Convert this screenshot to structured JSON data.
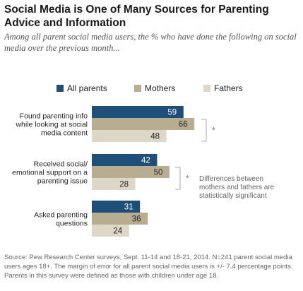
{
  "header": {
    "title": "Social Media is One of Many Sources for Parenting Advice and Information",
    "subtitle": "Among all parent social media users, the % who have done the following on social media over the previous month..."
  },
  "chart_data": {
    "type": "bar",
    "orientation": "horizontal",
    "categories": [
      [
        "Found parenting info",
        "while looking at social",
        "media content"
      ],
      [
        "Received social/",
        "emotional support on a",
        "parenting issue"
      ],
      [
        "Asked parenting",
        "questions"
      ]
    ],
    "series": [
      {
        "name": "All parents",
        "color": "#1f4e79",
        "values": [
          59,
          42,
          31
        ]
      },
      {
        "name": "Mothers",
        "color": "#b8ad91",
        "values": [
          66,
          50,
          36
        ]
      },
      {
        "name": "Fathers",
        "color": "#dcd7c6",
        "values": [
          48,
          28,
          24
        ]
      }
    ],
    "significance_marks": [
      "*",
      "*"
    ],
    "annotation": [
      "Differences between",
      "mothers and fathers are",
      "statistically significant"
    ],
    "xlim": [
      0,
      100
    ],
    "grid": false,
    "legend_position": "top"
  },
  "footer": {
    "source": "Source: Pew Research Center surveys, Sept. 11-14 and 18-21, 2014. N=241 parent social media users ages 18+. The margin of error for all parent social media users is +/- 7.4 percentage points. Parents in this survey were defined as those with children under age 18."
  }
}
